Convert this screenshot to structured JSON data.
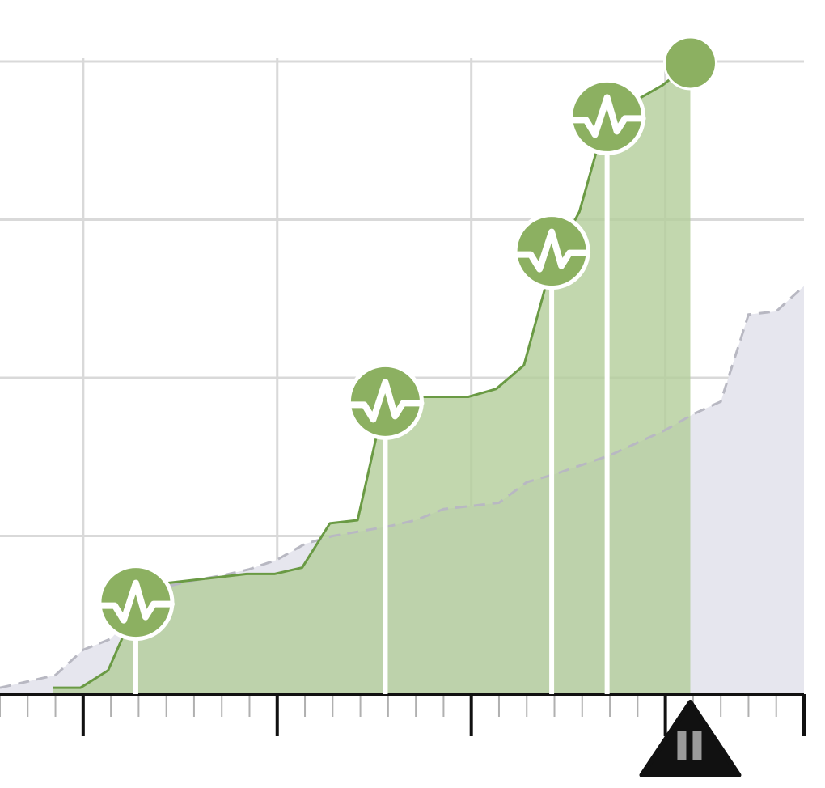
{
  "chart_data": {
    "type": "area",
    "title": "",
    "xlabel": "",
    "ylabel": "",
    "xlim": [
      0,
      29
    ],
    "ylim": [
      0,
      4
    ],
    "grid": true,
    "gridlines_x": [
      3,
      10,
      17,
      24
    ],
    "gridlines_y": [
      1,
      2,
      3,
      4
    ],
    "series": [
      {
        "style": "solid-filled",
        "color": "#6a9a44",
        "fill": "#b3cd9a",
        "x": [
          1.9,
          2.9,
          3.9,
          4.9,
          5.9,
          6.9,
          7.9,
          8.9,
          9.9,
          10.9,
          11.9,
          12.9,
          13.9,
          14.9,
          15.9,
          16.9,
          17.9,
          18.9,
          19.9,
          20.9,
          21.9,
          22.9,
          23.9,
          24.9
        ],
        "values": [
          0.04,
          0.04,
          0.15,
          0.55,
          0.7,
          0.72,
          0.74,
          0.76,
          0.76,
          0.8,
          1.08,
          1.1,
          1.88,
          1.88,
          1.88,
          1.88,
          1.93,
          2.08,
          2.72,
          3.05,
          3.67,
          3.75,
          3.85,
          3.99
        ]
      },
      {
        "style": "dashed-baseline",
        "color": "#b8b8c2",
        "fill": "#e6e6ee",
        "x": [
          0,
          1,
          2,
          3,
          4,
          5,
          6,
          7,
          8,
          9,
          10,
          11,
          12,
          13,
          14,
          15,
          16,
          17,
          18,
          19,
          20,
          21,
          22,
          23,
          24,
          25,
          26,
          27,
          28,
          29
        ],
        "values": [
          0.04,
          0.08,
          0.12,
          0.28,
          0.35,
          0.55,
          0.68,
          0.72,
          0.75,
          0.79,
          0.85,
          0.95,
          1.0,
          1.03,
          1.06,
          1.1,
          1.17,
          1.19,
          1.21,
          1.34,
          1.39,
          1.45,
          1.51,
          1.59,
          1.67,
          1.77,
          1.85,
          2.4,
          2.42,
          2.58
        ]
      }
    ],
    "markers": [
      {
        "x": 4.9,
        "y": 0.58,
        "icon": "heartbeat-check-icon"
      },
      {
        "x": 13.9,
        "y": 1.85,
        "icon": "heartbeat-check-icon"
      },
      {
        "x": 19.9,
        "y": 2.8,
        "icon": "heartbeat-check-icon"
      },
      {
        "x": 21.9,
        "y": 3.65,
        "icon": "heartbeat-check-icon"
      }
    ],
    "current_point": {
      "x": 24.9,
      "y": 3.99
    }
  },
  "playback": {
    "state": "paused",
    "icon": "pause-icon",
    "position_x": 24.9
  },
  "colors": {
    "grid": "#d9d9d9",
    "axis": "#111111",
    "tick_minor": "#b0b0b0",
    "marker": "#8cb061",
    "marker_stroke": "#ffffff",
    "playhead": "#111111",
    "pause_bars": "#9a9a9a"
  }
}
